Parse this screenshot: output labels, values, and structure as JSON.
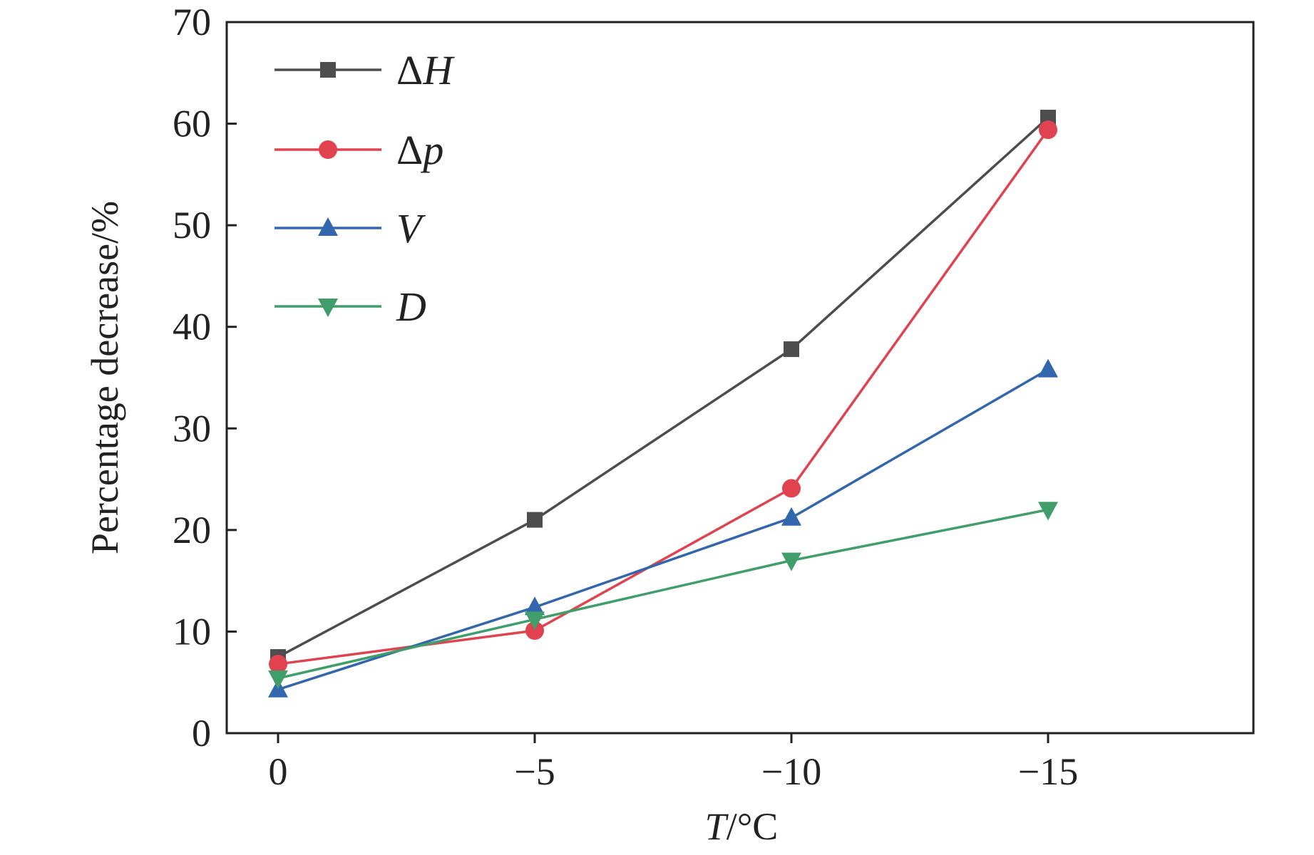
{
  "chart_data": {
    "type": "line",
    "title": "",
    "xlabel_var": "T",
    "xlabel_unit": "/°C",
    "ylabel": "Percentage decrease/%",
    "categories": [
      "0",
      "−5",
      "−10",
      "−15"
    ],
    "x": [
      0,
      -5,
      -10,
      -15
    ],
    "xlim": [
      1,
      -19
    ],
    "ylim": [
      0,
      70
    ],
    "yticks": [
      0,
      10,
      20,
      30,
      40,
      50,
      60,
      70
    ],
    "grid": false,
    "legend_position": "top-left",
    "series": [
      {
        "name": "ΔH",
        "name_prefix": "Δ",
        "name_var": "H",
        "color": "#4d4d4d",
        "marker": "square",
        "values": [
          7.5,
          21.0,
          37.8,
          60.6
        ]
      },
      {
        "name": "Δp",
        "name_prefix": "Δ",
        "name_var": "p",
        "color": "#e0434f",
        "marker": "circle",
        "values": [
          6.8,
          10.1,
          24.1,
          59.4
        ]
      },
      {
        "name": "V",
        "name_prefix": "",
        "name_var": "V",
        "color": "#3266ad",
        "marker": "triangle-up",
        "values": [
          4.3,
          12.4,
          21.2,
          35.8
        ]
      },
      {
        "name": "D",
        "name_prefix": "",
        "name_var": "D",
        "color": "#3f9e6a",
        "marker": "triangle-down",
        "values": [
          5.4,
          11.2,
          17.0,
          22.0
        ]
      }
    ]
  }
}
